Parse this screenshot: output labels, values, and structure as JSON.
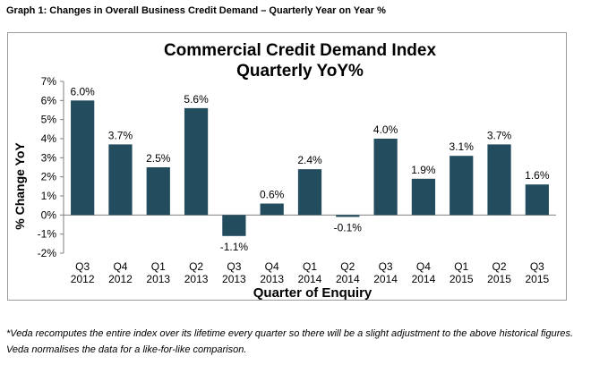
{
  "caption": "Graph 1: Changes in Overall Business Credit Demand – Quarterly Year on Year %",
  "footnote": "*Veda recomputes the entire index over its lifetime every quarter so there will be a slight adjustment to the above historical figures. Veda normalises the data for a like-for-like comparison.",
  "colors": {
    "bar": "#234d5f",
    "frame": "#9a9a9a",
    "axis": "#808080"
  },
  "chart_data": {
    "type": "bar",
    "title": "Commercial Credit Demand Index",
    "subtitle": "Quarterly YoY%",
    "xlabel": "Quarter of Enquiry",
    "ylabel": "% Change YoY",
    "categories": [
      [
        "Q3",
        "2012"
      ],
      [
        "Q4",
        "2012"
      ],
      [
        "Q1",
        "2013"
      ],
      [
        "Q2",
        "2013"
      ],
      [
        "Q3",
        "2013"
      ],
      [
        "Q4",
        "2013"
      ],
      [
        "Q1",
        "2014"
      ],
      [
        "Q2",
        "2014"
      ],
      [
        "Q3",
        "2014"
      ],
      [
        "Q4",
        "2014"
      ],
      [
        "Q1",
        "2015"
      ],
      [
        "Q2",
        "2015"
      ],
      [
        "Q3",
        "2015"
      ]
    ],
    "values": [
      6.0,
      3.7,
      2.5,
      5.6,
      -1.1,
      0.6,
      2.4,
      -0.1,
      4.0,
      1.9,
      3.1,
      3.7,
      1.6
    ],
    "data_labels": [
      "6.0%",
      "3.7%",
      "2.5%",
      "5.6%",
      "-1.1%",
      "0.6%",
      "2.4%",
      "-0.1%",
      "4.0%",
      "1.9%",
      "3.1%",
      "3.7%",
      "1.6%"
    ],
    "yticks": [
      7,
      6,
      5,
      4,
      3,
      2,
      1,
      0,
      -1,
      -2
    ],
    "ytick_labels": [
      "7%",
      "6%",
      "5%",
      "4%",
      "3%",
      "2%",
      "1%",
      "0%",
      "-1%",
      "-2%"
    ],
    "ylim": [
      -2,
      7
    ],
    "grid": false,
    "legend": "none"
  }
}
